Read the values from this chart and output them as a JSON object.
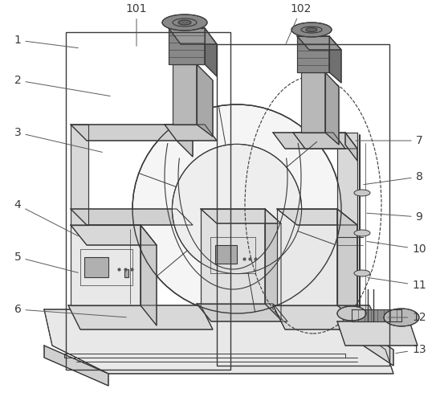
{
  "bg_color": "#ffffff",
  "line_color": "#3a3a3a",
  "label_color": "#3a3a3a",
  "figsize": [
    5.43,
    4.99
  ],
  "dpi": 100
}
